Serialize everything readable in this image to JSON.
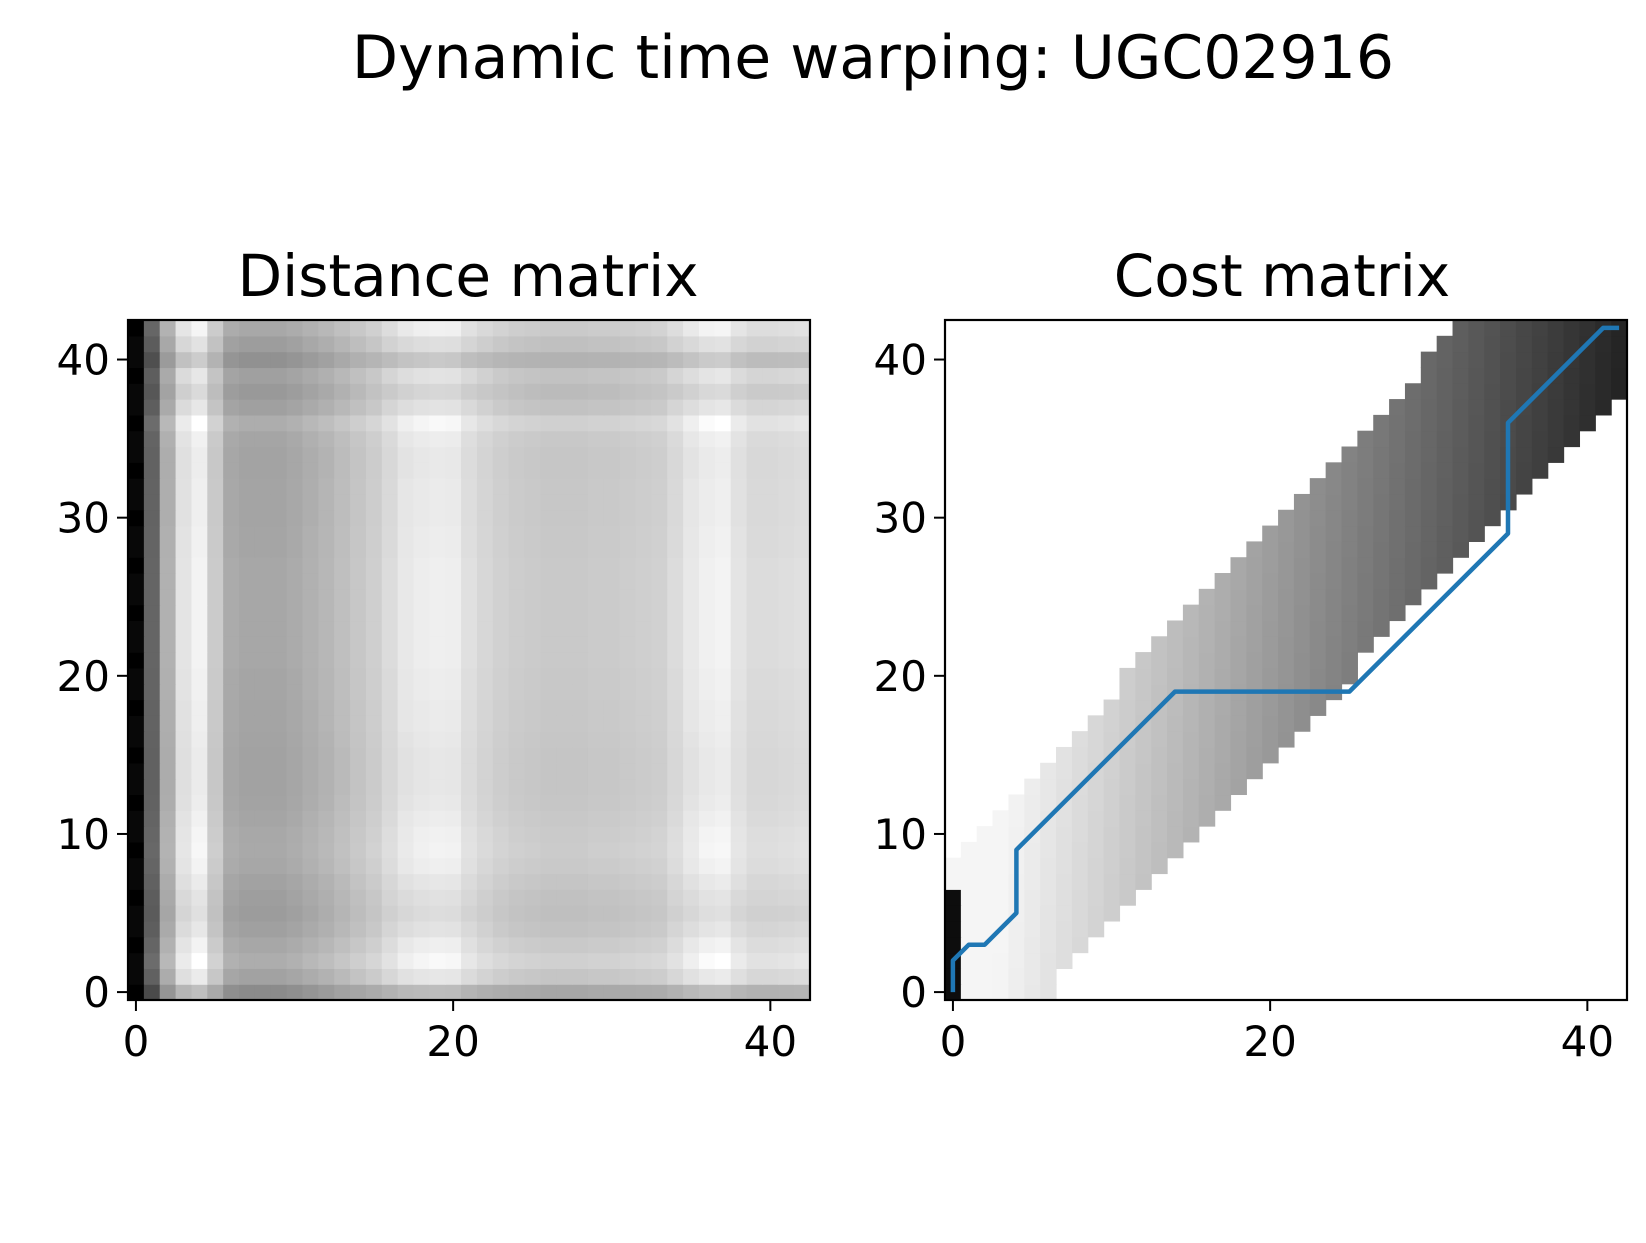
{
  "suptitle": "Dynamic time warping: UGC02916",
  "chart_data": [
    {
      "type": "heatmap",
      "title": "Distance matrix",
      "colormap": "gray_r",
      "size": 43,
      "origin": "lower",
      "xlim": [
        -0.5,
        42.5
      ],
      "ylim": [
        -0.5,
        42.5
      ],
      "xticks": [
        0,
        20,
        40
      ],
      "yticks": [
        0,
        10,
        20,
        30,
        40
      ],
      "xtick_labels": [
        "0",
        "20",
        "40"
      ],
      "ytick_labels": [
        "0",
        "10",
        "20",
        "30",
        "40"
      ],
      "column_profile": [
        1.0,
        0.72,
        0.35,
        0.1,
        0.0,
        0.22,
        0.38,
        0.4,
        0.4,
        0.4,
        0.38,
        0.35,
        0.32,
        0.28,
        0.24,
        0.2,
        0.14,
        0.08,
        0.05,
        0.03,
        0.04,
        0.12,
        0.16,
        0.19,
        0.21,
        0.22,
        0.23,
        0.23,
        0.23,
        0.22,
        0.22,
        0.21,
        0.2,
        0.19,
        0.14,
        0.08,
        0.02,
        0.0,
        0.1,
        0.14,
        0.14,
        0.13,
        0.12
      ],
      "row_profile": [
        0.3,
        0.1,
        0.0,
        0.06,
        0.12,
        0.15,
        0.13,
        0.1,
        0.06,
        0.04,
        0.05,
        0.07,
        0.09,
        0.1,
        0.1,
        0.1,
        0.09,
        0.08,
        0.08,
        0.07,
        0.07,
        0.06,
        0.06,
        0.06,
        0.06,
        0.06,
        0.06,
        0.06,
        0.07,
        0.07,
        0.08,
        0.08,
        0.08,
        0.09,
        0.09,
        0.07,
        0.0,
        0.12,
        0.18,
        0.12,
        0.25,
        0.14,
        0.05
      ]
    },
    {
      "type": "heatmap",
      "title": "Cost matrix",
      "colormap": "gray_r",
      "size": 43,
      "origin": "lower",
      "band": "Sakoe-Chiba window, cells outside the window are blank",
      "xlim": [
        -0.5,
        42.5
      ],
      "ylim": [
        -0.5,
        42.5
      ],
      "xticks": [
        0,
        20,
        40
      ],
      "yticks": [
        0,
        10,
        20,
        30,
        40
      ],
      "xtick_labels": [
        "0",
        "20",
        "40"
      ],
      "ytick_labels": [
        "0",
        "10",
        "20",
        "30",
        "40"
      ],
      "path_color": "#1f77b4",
      "warping_path": [
        [
          0,
          0
        ],
        [
          0,
          2
        ],
        [
          1,
          3
        ],
        [
          2,
          3
        ],
        [
          4,
          5
        ],
        [
          4,
          9
        ],
        [
          14,
          19
        ],
        [
          25,
          19
        ],
        [
          35,
          29
        ],
        [
          35,
          36
        ],
        [
          41,
          42
        ],
        [
          42,
          42
        ]
      ]
    }
  ]
}
